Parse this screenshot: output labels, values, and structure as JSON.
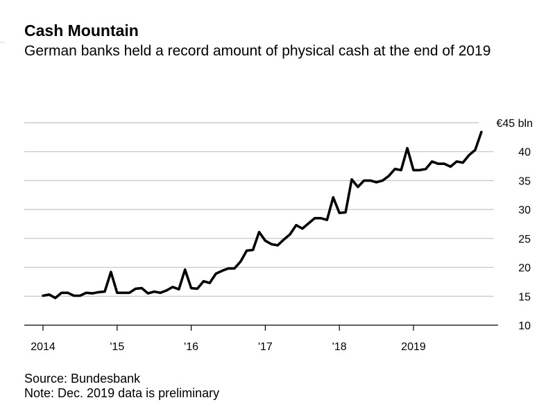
{
  "title": "Cash Mountain",
  "subtitle": "German banks held a record amount of physical cash at the end of 2019",
  "source": "Source: Bundesbank",
  "note": "Note: Dec. 2019 data is preliminary",
  "chart_data": {
    "type": "line",
    "title": "Cash Mountain",
    "subtitle": "German banks held a record amount of physical cash at the end of 2019",
    "xlabel": "",
    "ylabel": "",
    "ylim": [
      10,
      45
    ],
    "y_ticks": [
      10,
      15,
      20,
      25,
      30,
      35,
      40,
      45
    ],
    "y_tick_labels": [
      "10",
      "15",
      "20",
      "25",
      "30",
      "35",
      "40",
      "€45 bln"
    ],
    "x_tick_labels": [
      "2014",
      "'15",
      "'16",
      "'17",
      "'18",
      "2019"
    ],
    "grid": true,
    "line_color": "#000000",
    "series": [
      {
        "values": [
          15.1,
          15.3,
          14.7,
          15.6,
          15.6,
          15.1,
          15.1,
          15.6,
          15.5,
          15.7,
          15.8,
          19.2,
          15.6,
          15.6,
          15.6,
          16.3,
          16.4,
          15.5,
          15.8,
          15.6,
          16.0,
          16.6,
          16.2,
          19.6,
          16.4,
          16.3,
          17.6,
          17.3,
          18.9,
          19.4,
          19.8,
          19.8,
          21.0,
          22.9,
          23.0,
          26.1,
          24.6,
          24.0,
          23.8,
          24.8,
          25.7,
          27.3,
          26.7,
          27.6,
          28.5,
          28.5,
          28.2,
          32.1,
          29.4,
          29.5,
          35.2,
          33.9,
          35.0,
          35.0,
          34.7,
          35.0,
          35.8,
          37.0,
          36.8,
          40.6,
          36.8,
          36.8,
          37.0,
          38.3,
          37.9,
          37.9,
          37.4,
          38.3,
          38.1,
          39.4,
          40.3,
          43.4
        ]
      }
    ]
  }
}
